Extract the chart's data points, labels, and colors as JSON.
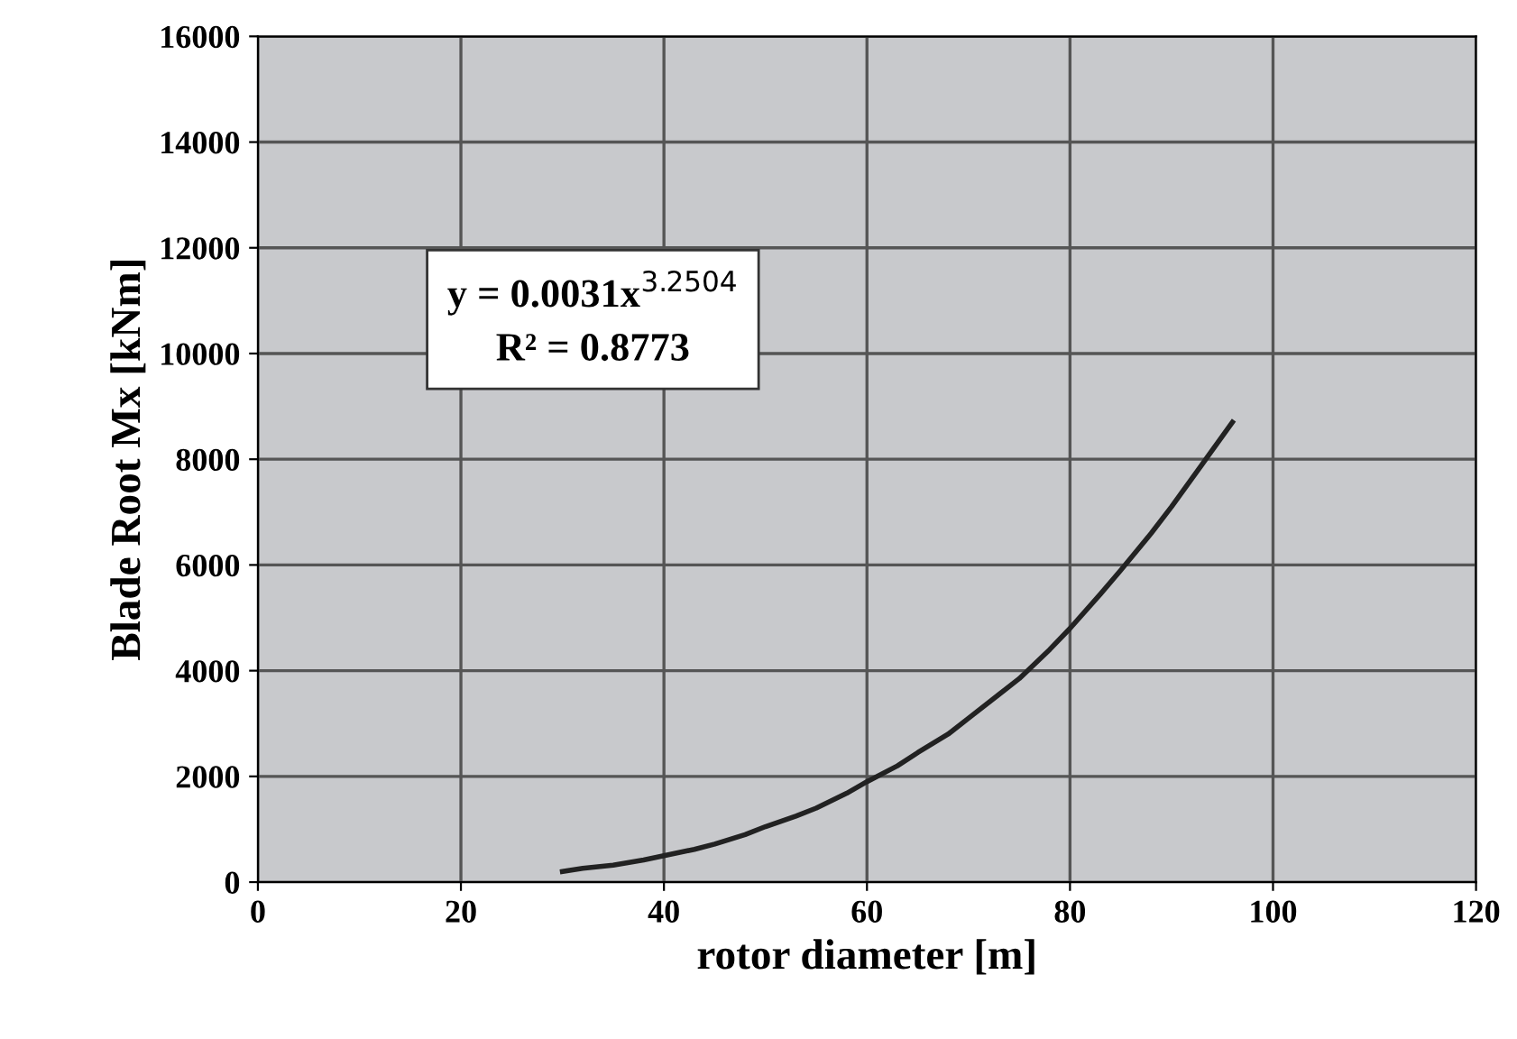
{
  "chart_data": {
    "type": "line",
    "xlabel": "rotor diameter [m]",
    "ylabel": "Blade Root Mx [kNm]",
    "x": [
      30,
      32,
      35,
      38,
      40,
      43,
      45,
      48,
      50,
      53,
      55,
      58,
      60,
      63,
      65,
      68,
      70,
      73,
      75,
      78,
      80,
      83,
      85,
      88,
      90,
      93,
      96
    ],
    "series": [
      {
        "color": "#222222",
        "values": [
          200,
          260,
          320,
          420,
          500,
          620,
          720,
          900,
          1050,
          1250,
          1400,
          1680,
          1900,
          2200,
          2450,
          2800,
          3100,
          3550,
          3850,
          4400,
          4800,
          5450,
          5900,
          6600,
          7100,
          7900,
          8700
        ]
      }
    ],
    "xlim": [
      0,
      120
    ],
    "xticks": [
      0,
      20,
      40,
      60,
      80,
      100,
      120
    ],
    "ylim": [
      0,
      16000
    ],
    "yticks": [
      0,
      2000,
      4000,
      6000,
      8000,
      10000,
      12000,
      14000,
      16000
    ],
    "grid": true,
    "marker": "none",
    "line_style": "solid",
    "annotations": [
      "y = 0.0031x$^{3.2504}$\nR² = 0.8773"
    ]
  }
}
